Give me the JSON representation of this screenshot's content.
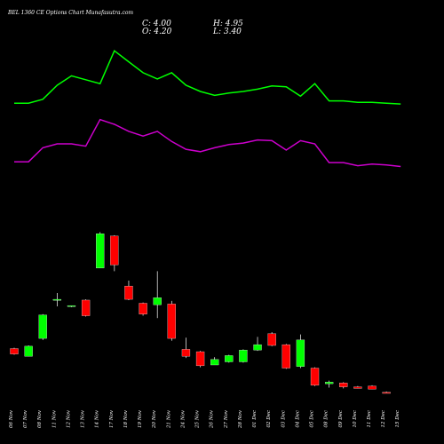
{
  "chart_data": {
    "type": "candlestick",
    "title": "BEL 1360 CE Options Chart Munafasutra.com",
    "ohlc_readout": {
      "close": "C: 4.00",
      "open": "O: 4.20",
      "high": "H: 4.95",
      "low": "L: 3.40"
    },
    "categories": [
      "06 Nov",
      "07 Nov",
      "08 Nov",
      "11 Nov",
      "12 Nov",
      "13 Nov",
      "14 Nov",
      "17 Nov",
      "18 Nov",
      "19 Nov",
      "20 Nov",
      "21 Nov",
      "24 Nov",
      "25 Nov",
      "26 Nov",
      "27 Nov",
      "28 Nov",
      "01 Dec",
      "02 Dec",
      "03 Dec",
      "04 Dec",
      "05 Dec",
      "08 Dec",
      "09 Dec",
      "10 Dec",
      "11 Dec",
      "12 Dec",
      "15 Dec"
    ],
    "candles": [
      {
        "open": 7.1,
        "close": 6.4,
        "high": 7.2,
        "low": 6.3
      },
      {
        "open": 6.1,
        "close": 7.4,
        "high": 7.5,
        "low": 6.1
      },
      {
        "open": 8.4,
        "close": 11.4,
        "high": 11.5,
        "low": 8.2
      },
      {
        "open": 13.4,
        "close": 13.4,
        "high": 14.2,
        "low": 12.5
      },
      {
        "open": 12.6,
        "close": 12.6,
        "high": 12.6,
        "low": 12.4
      },
      {
        "open": 13.3,
        "close": 11.3,
        "high": 13.4,
        "low": 11.2
      },
      {
        "open": 17.4,
        "close": 21.8,
        "high": 22.0,
        "low": 17.4
      },
      {
        "open": 21.5,
        "close": 17.8,
        "high": 21.6,
        "low": 17.0
      },
      {
        "open": 15.1,
        "close": 13.4,
        "high": 15.8,
        "low": 13.3
      },
      {
        "open": 12.9,
        "close": 11.5,
        "high": 13.0,
        "low": 11.3
      },
      {
        "open": 12.7,
        "close": 13.6,
        "high": 17.0,
        "low": 11.0
      },
      {
        "open": 12.8,
        "close": 8.4,
        "high": 13.2,
        "low": 8.1
      },
      {
        "open": 7.0,
        "close": 6.1,
        "high": 8.5,
        "low": 5.9
      },
      {
        "open": 6.7,
        "close": 4.9,
        "high": 6.8,
        "low": 4.7
      },
      {
        "open": 5.0,
        "close": 5.7,
        "high": 6.0,
        "low": 5.0
      },
      {
        "open": 5.4,
        "close": 6.2,
        "high": 6.3,
        "low": 5.3
      },
      {
        "open": 5.4,
        "close": 6.9,
        "high": 7.0,
        "low": 5.3
      },
      {
        "open": 6.9,
        "close": 7.6,
        "high": 8.6,
        "low": 6.8
      },
      {
        "open": 9.0,
        "close": 7.5,
        "high": 9.2,
        "low": 7.4
      },
      {
        "open": 7.6,
        "close": 4.6,
        "high": 7.7,
        "low": 4.5
      },
      {
        "open": 4.8,
        "close": 8.2,
        "high": 8.9,
        "low": 4.6
      },
      {
        "open": 4.6,
        "close": 2.4,
        "high": 4.7,
        "low": 2.3
      },
      {
        "open": 2.6,
        "close": 2.8,
        "high": 3.0,
        "low": 2.1
      },
      {
        "open": 2.7,
        "close": 2.2,
        "high": 2.8,
        "low": 2.0
      },
      {
        "open": 2.2,
        "close": 2.0,
        "high": 2.3,
        "low": 2.0
      },
      {
        "open": 2.3,
        "close": 1.9,
        "high": 2.4,
        "low": 1.9
      },
      {
        "open": 1.5,
        "close": 1.4,
        "high": 1.6,
        "low": 1.4
      },
      {
        "open": 4.2,
        "close": 4.0,
        "high": 4.95,
        "low": 3.4
      }
    ],
    "include_last_in_plot": false,
    "series": [
      {
        "values": [
          38.5,
          38.5,
          39.0,
          40.8,
          42.0,
          41.5,
          41.0,
          45.2,
          43.8,
          42.4,
          41.6,
          42.4,
          40.8,
          40.0,
          39.5,
          39.8,
          40.0,
          40.3,
          40.7,
          40.6,
          39.4,
          41.0,
          38.8,
          38.8,
          38.6,
          38.6,
          38.5,
          38.4
        ]
      },
      {
        "values": [
          31.0,
          31.0,
          32.8,
          33.3,
          33.3,
          33.0,
          36.4,
          35.8,
          34.9,
          34.3,
          34.9,
          33.6,
          32.6,
          32.3,
          32.8,
          33.2,
          33.4,
          33.8,
          33.7,
          32.5,
          33.7,
          33.3,
          30.9,
          30.9,
          30.5,
          30.7,
          30.6,
          30.4
        ]
      }
    ],
    "colors": {
      "up": "#00ff00",
      "down": "#ff0000",
      "line1": "#00ff00",
      "line2": "#cc00cc",
      "background": "#000000",
      "text": "#ffffff"
    },
    "ylim": [
      0,
      50
    ],
    "grid": false,
    "legend": "none"
  }
}
